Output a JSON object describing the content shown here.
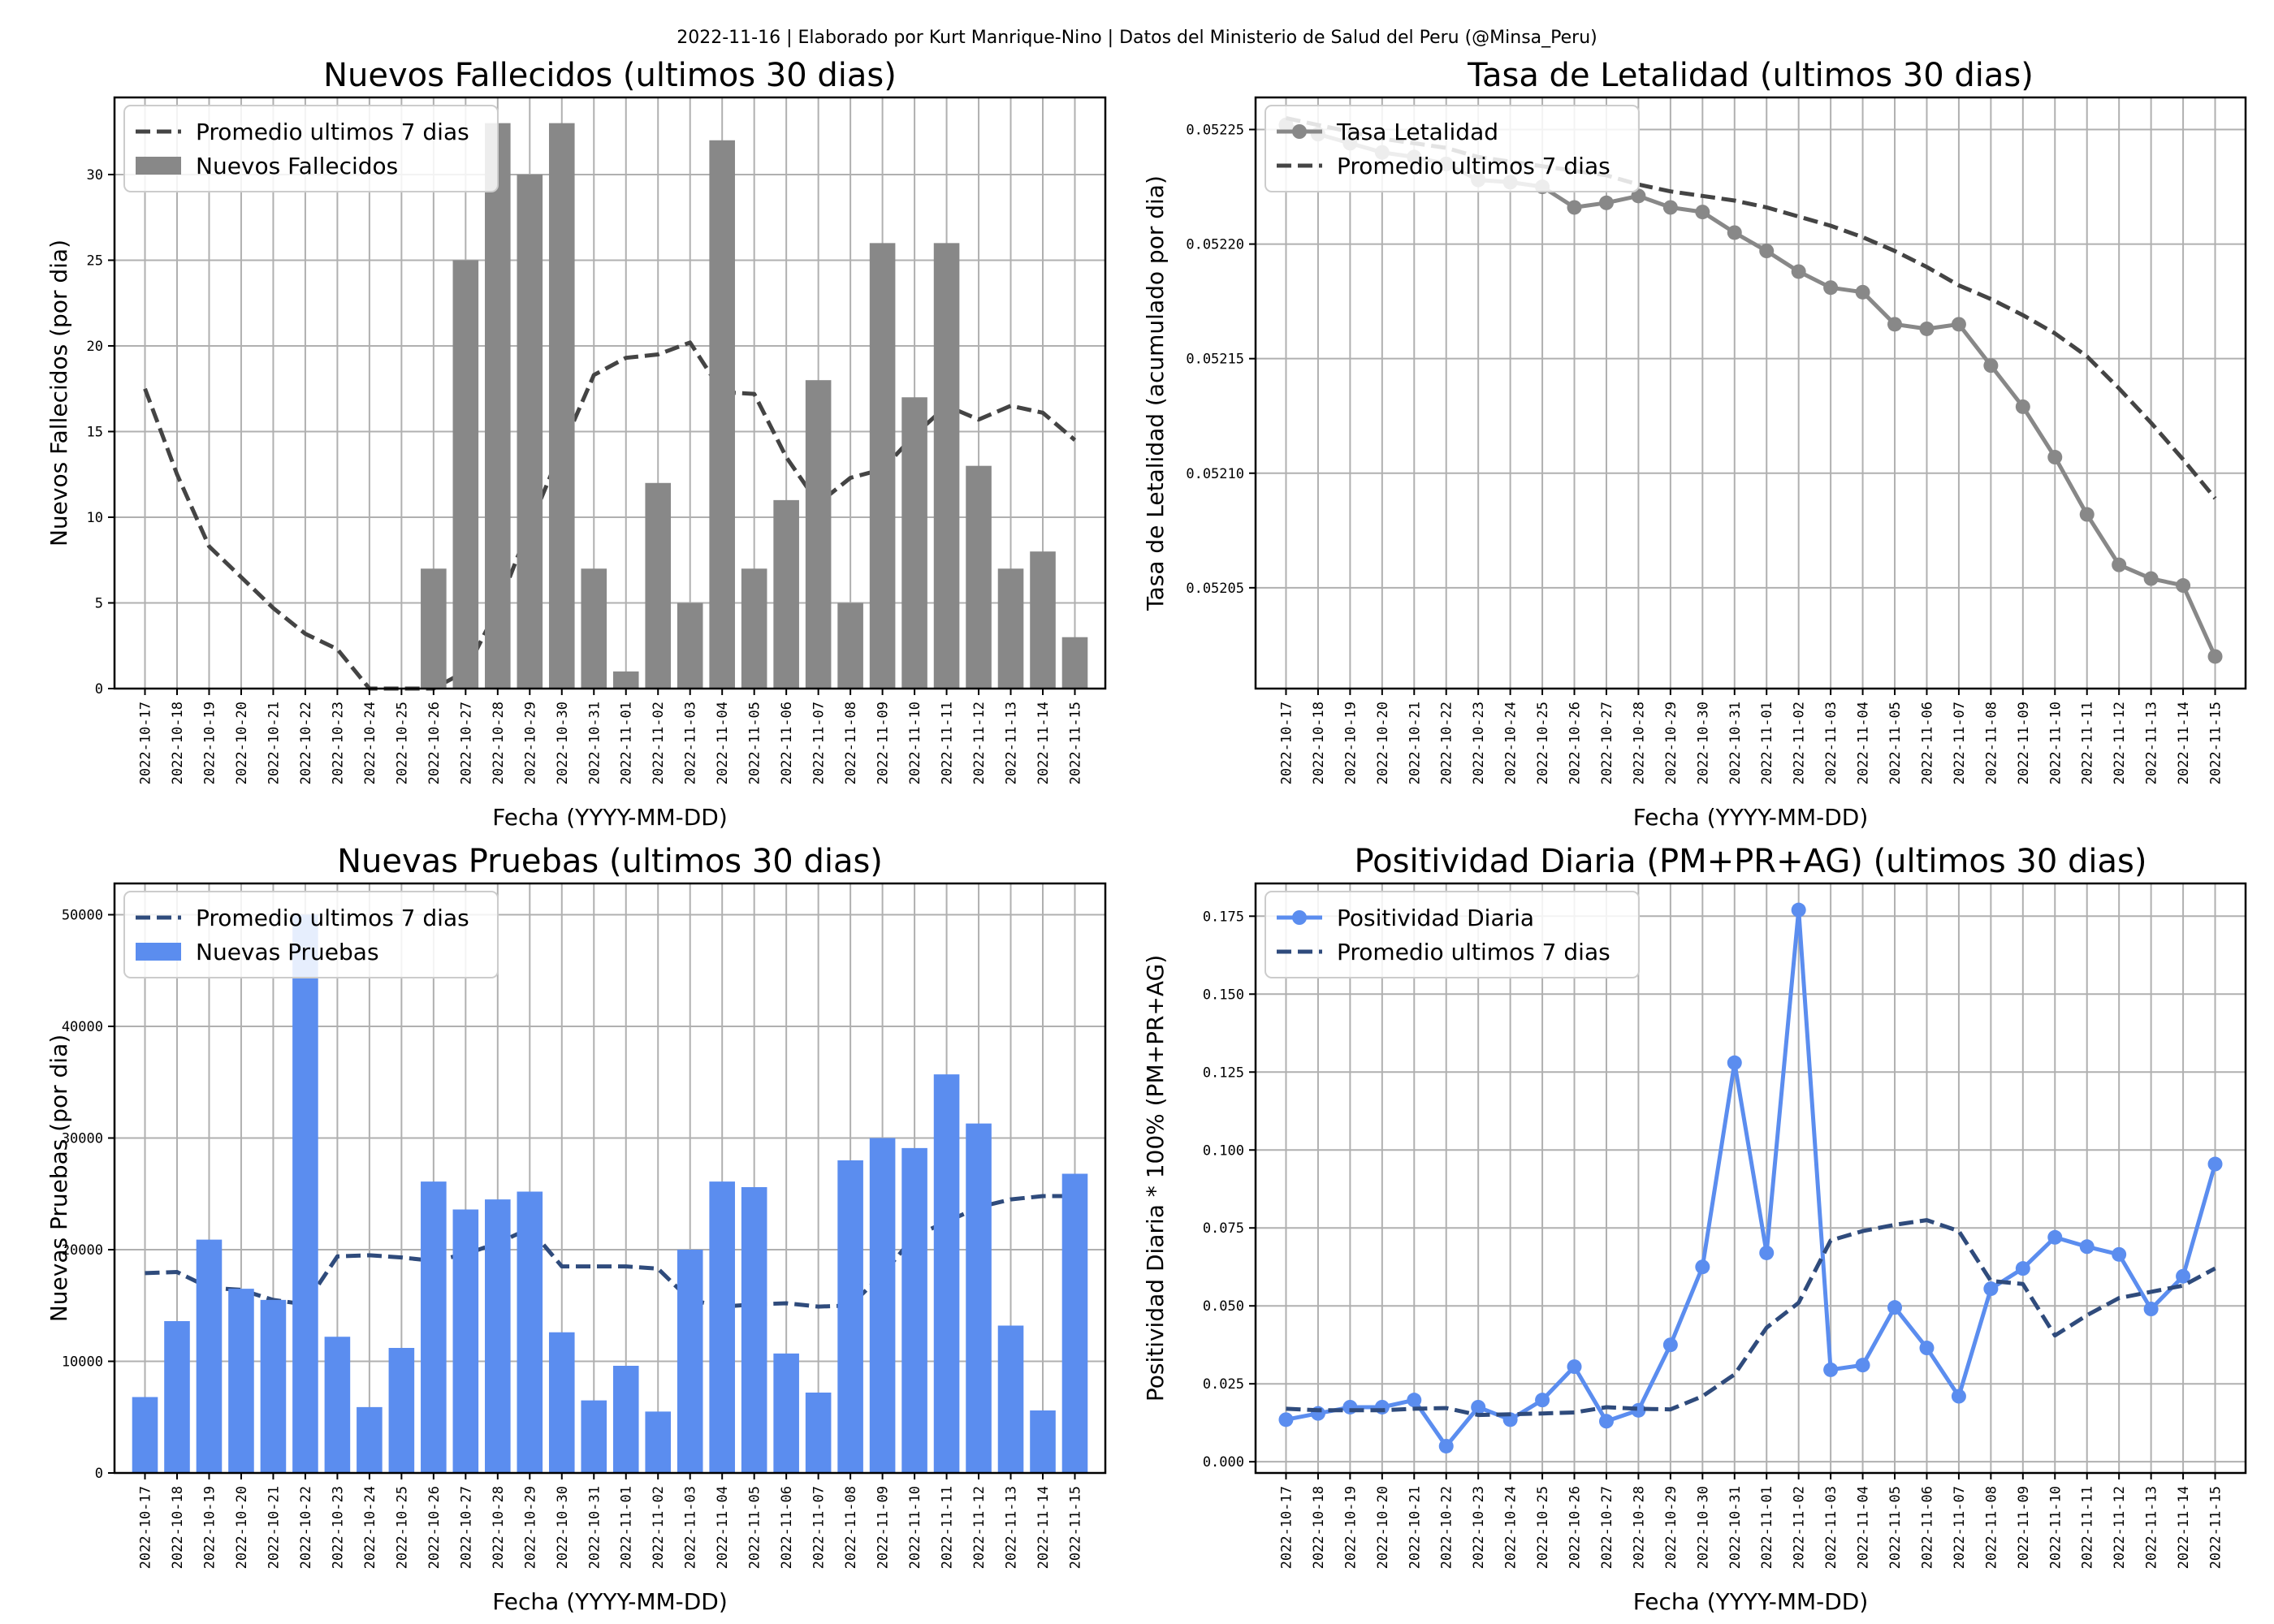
{
  "suptitle": "2022-11-16 | Elaborado por Kurt Manrique-Nino | Datos del Ministerio de Salud del Peru (@Minsa_Peru)",
  "dates": [
    "2022-10-17",
    "2022-10-18",
    "2022-10-19",
    "2022-10-20",
    "2022-10-21",
    "2022-10-22",
    "2022-10-23",
    "2022-10-24",
    "2022-10-25",
    "2022-10-26",
    "2022-10-27",
    "2022-10-28",
    "2022-10-29",
    "2022-10-30",
    "2022-10-31",
    "2022-11-01",
    "2022-11-02",
    "2022-11-03",
    "2022-11-04",
    "2022-11-05",
    "2022-11-06",
    "2022-11-07",
    "2022-11-08",
    "2022-11-09",
    "2022-11-10",
    "2022-11-11",
    "2022-11-12",
    "2022-11-13",
    "2022-11-14",
    "2022-11-15"
  ],
  "chart_data": [
    {
      "type": "bar",
      "title": "Nuevos Fallecidos (ultimos 30 dias)",
      "xlabel": "Fecha (YYYY-MM-DD)",
      "ylabel": "Nuevos Fallecidos (por dia)",
      "ylim": [
        0,
        34.5
      ],
      "yticks": [
        0,
        5,
        10,
        15,
        20,
        25,
        30
      ],
      "ytick_labels": [
        "0",
        "5",
        "10",
        "15",
        "20",
        "25",
        "30"
      ],
      "grid": true,
      "legend_position": "upper-left",
      "series": [
        {
          "name": "Promedio ultimos 7 dias",
          "kind": "line",
          "style": "dashed",
          "color": "#444444",
          "values": [
            17.5,
            12.5,
            8.3,
            6.5,
            4.7,
            3.2,
            2.3,
            0.0,
            0.0,
            0.0,
            1.0,
            4.7,
            9.5,
            14.0,
            18.3,
            19.3,
            19.5,
            20.2,
            17.3,
            17.2,
            13.5,
            10.8,
            12.3,
            12.8,
            14.8,
            16.5,
            15.7,
            16.5,
            16.1,
            14.5
          ]
        },
        {
          "name": "Nuevos Fallecidos",
          "kind": "bar",
          "color": "#888888",
          "values": [
            0,
            0,
            0,
            0,
            0,
            0,
            0,
            0,
            0,
            7,
            25,
            33,
            30,
            33,
            7,
            1,
            12,
            5,
            32,
            7,
            11,
            18,
            5,
            26,
            17,
            26,
            13,
            7,
            8,
            3
          ]
        }
      ]
    },
    {
      "type": "line",
      "title": "Tasa de Letalidad (ultimos 30 dias)",
      "xlabel": "Fecha (YYYY-MM-DD)",
      "ylabel": "Tasa de Letalidad (acumulado por dia)",
      "ylim": [
        0.052006,
        0.052264
      ],
      "yticks": [
        0.05205,
        0.0521,
        0.05215,
        0.0522,
        0.05225
      ],
      "ytick_labels": [
        "0.05205",
        "0.05210",
        "0.05215",
        "0.05220",
        "0.05225"
      ],
      "grid": true,
      "legend_position": "upper-left",
      "series": [
        {
          "name": "Tasa Letalidad",
          "kind": "line-marker",
          "color": "#888888",
          "values": [
            0.052252,
            0.052248,
            0.052244,
            0.05224,
            0.052238,
            0.052235,
            0.052228,
            0.052227,
            0.052225,
            0.052216,
            0.052218,
            0.052221,
            0.052216,
            0.052214,
            0.052205,
            0.052197,
            0.052188,
            0.052181,
            0.052179,
            0.052165,
            0.052163,
            0.052165,
            0.052147,
            0.052129,
            0.052107,
            0.052082,
            0.05206,
            0.052054,
            0.052051,
            0.05202
          ]
        },
        {
          "name": "Promedio ultimos 7 dias",
          "kind": "line",
          "style": "dashed",
          "color": "#444444",
          "values": [
            0.052255,
            0.052252,
            0.052249,
            0.052246,
            0.052244,
            0.052242,
            0.052238,
            0.052236,
            0.052234,
            0.052232,
            0.05223,
            0.052226,
            0.052223,
            0.052221,
            0.052219,
            0.052216,
            0.052212,
            0.052208,
            0.052203,
            0.052197,
            0.05219,
            0.052182,
            0.052176,
            0.052169,
            0.052161,
            0.052151,
            0.052137,
            0.052122,
            0.052106,
            0.052089
          ]
        }
      ]
    },
    {
      "type": "bar",
      "title": "Nuevas Pruebas (ultimos 30 dias)",
      "xlabel": "Fecha (YYYY-MM-DD)",
      "ylabel": "Nuevas Pruebas (por dia)",
      "ylim": [
        0,
        52800
      ],
      "yticks": [
        0,
        10000,
        20000,
        30000,
        40000,
        50000
      ],
      "ytick_labels": [
        "0",
        "10000",
        "20000",
        "30000",
        "40000",
        "50000"
      ],
      "grid": true,
      "legend_position": "upper-left",
      "series": [
        {
          "name": "Promedio ultimos 7 dias",
          "kind": "line",
          "style": "dashed",
          "color": "#2f4b7c",
          "values": [
            17900,
            18000,
            16600,
            16400,
            15500,
            15100,
            19400,
            19500,
            19300,
            19000,
            19600,
            20600,
            21900,
            18500,
            18500,
            18500,
            18300,
            15500,
            14900,
            15100,
            15200,
            14900,
            15000,
            17800,
            21200,
            22500,
            23800,
            24500,
            24800,
            24800
          ]
        },
        {
          "name": "Nuevas Pruebas",
          "kind": "bar",
          "color": "#5b8def",
          "values": [
            6800,
            13600,
            20900,
            16500,
            15500,
            50000,
            12200,
            5900,
            11200,
            26100,
            23600,
            24500,
            25200,
            12600,
            6500,
            9600,
            5500,
            20000,
            26100,
            25600,
            10700,
            7200,
            28000,
            30000,
            29100,
            35700,
            31300,
            13200,
            5600,
            26800
          ]
        }
      ]
    },
    {
      "type": "line",
      "title": "Positividad Diaria (PM+PR+AG) (ultimos 30 dias)",
      "xlabel": "Fecha (YYYY-MM-DD)",
      "ylabel": "Positividad Diaria * 100% (PM+PR+AG)",
      "ylim": [
        -0.0036,
        0.1855
      ],
      "yticks": [
        0,
        0.025,
        0.05,
        0.075,
        0.1,
        0.125,
        0.15,
        0.175
      ],
      "ytick_labels": [
        "0.000",
        "0.025",
        "0.050",
        "0.075",
        "0.100",
        "0.125",
        "0.150",
        "0.175"
      ],
      "grid": true,
      "legend_position": "upper-left",
      "series": [
        {
          "name": "Positividad Diaria",
          "kind": "line-marker",
          "color": "#5b8def",
          "values": [
            0.0135,
            0.0155,
            0.0175,
            0.0175,
            0.0198,
            0.005,
            0.0175,
            0.0135,
            0.0198,
            0.0305,
            0.013,
            0.0165,
            0.0375,
            0.0625,
            0.128,
            0.067,
            0.177,
            0.0295,
            0.031,
            0.0495,
            0.0365,
            0.021,
            0.0555,
            0.062,
            0.072,
            0.069,
            0.0665,
            0.049,
            0.0595,
            0.0955
          ]
        },
        {
          "name": "Promedio ultimos 7 dias",
          "kind": "line",
          "style": "dashed",
          "color": "#2f4b7c",
          "values": [
            0.017,
            0.0165,
            0.0165,
            0.0165,
            0.017,
            0.0172,
            0.015,
            0.0152,
            0.0155,
            0.0158,
            0.0175,
            0.017,
            0.0168,
            0.021,
            0.028,
            0.043,
            0.051,
            0.071,
            0.074,
            0.076,
            0.0775,
            0.074,
            0.058,
            0.057,
            0.0405,
            0.047,
            0.0525,
            0.0545,
            0.0565,
            0.062
          ]
        }
      ]
    }
  ]
}
